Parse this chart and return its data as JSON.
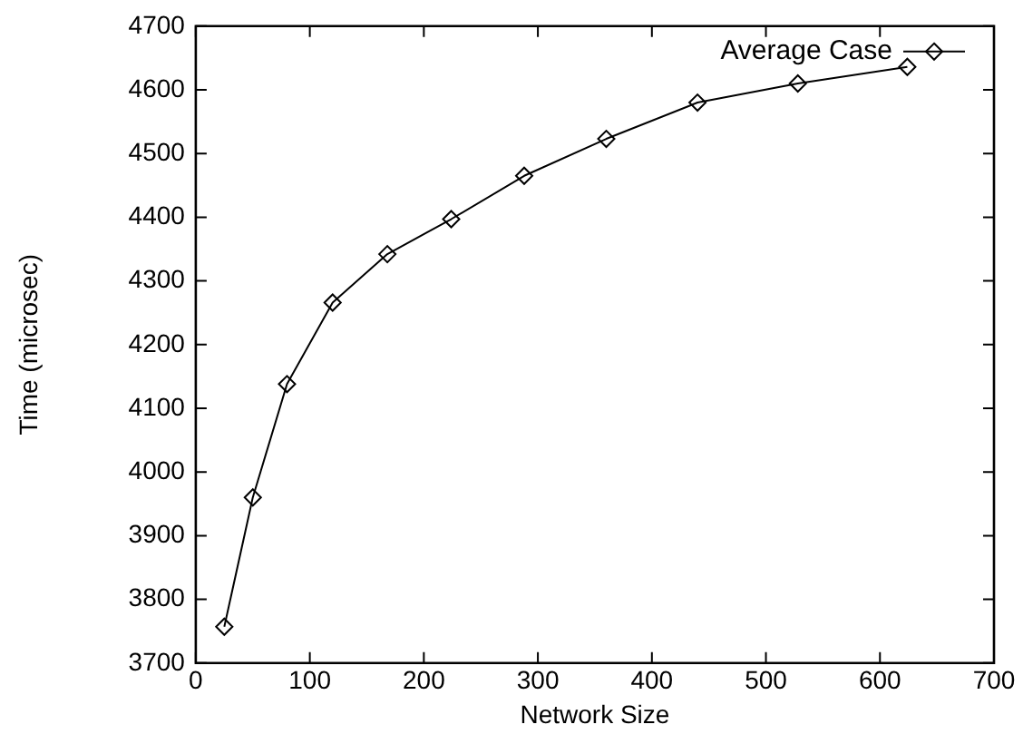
{
  "chart_data": {
    "type": "line",
    "xlabel": "Network Size",
    "ylabel": "Time (microsec)",
    "x": [
      25,
      50,
      80,
      120,
      168,
      224,
      288,
      360,
      440,
      528,
      624
    ],
    "series": [
      {
        "name": "Average Case",
        "color": "#000000",
        "values": [
          3757,
          3960,
          4138,
          4266,
          4342,
          4397,
          4465,
          4523,
          4580,
          4610,
          4636
        ]
      }
    ],
    "xlim": [
      0,
      700
    ],
    "xticks": [
      0,
      100,
      200,
      300,
      400,
      500,
      600,
      700
    ],
    "ylim": [
      3700,
      4700
    ],
    "yticks": [
      3700,
      3800,
      3900,
      4000,
      4100,
      4200,
      4300,
      4400,
      4500,
      4600,
      4700
    ],
    "marker": "diamond",
    "line_style": "solid",
    "legend": "top right",
    "grid": false
  }
}
